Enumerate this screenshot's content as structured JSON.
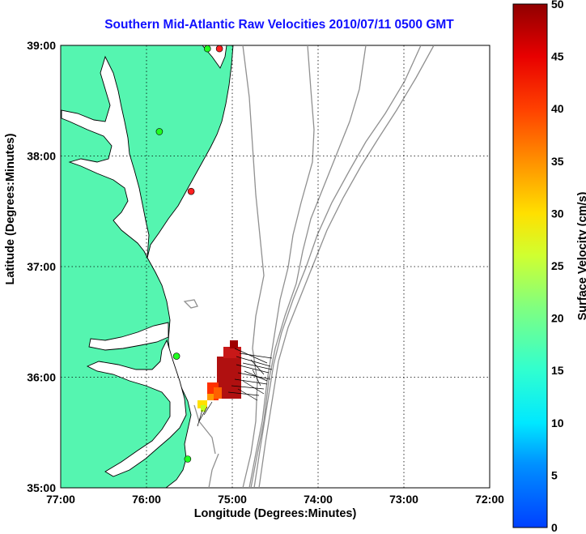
{
  "title": "Southern Mid-Atlantic Raw Velocities 2010/07/11 0500 GMT",
  "map": {
    "xlabel": "Longitude (Degrees:Minutes)",
    "ylabel": "Latitude (Degrees:Minutes)",
    "x_ticks": [
      "77:00",
      "76:00",
      "75:00",
      "74:00",
      "73:00",
      "72:00"
    ],
    "y_ticks": [
      "39:00",
      "38:00",
      "37:00",
      "36:00",
      "35:00"
    ],
    "lon_range": [
      -77,
      -72
    ],
    "lat_range": [
      35,
      39
    ],
    "grid": true,
    "land_color": "#55f5b0",
    "coast_color": "#000000",
    "bathymetry_color": "#909090",
    "stations": [
      {
        "lon": -75.15,
        "lat": 38.97,
        "color": "#ff2020"
      },
      {
        "lon": -75.29,
        "lat": 38.97,
        "color": "#20ff20"
      },
      {
        "lon": -75.85,
        "lat": 38.22,
        "color": "#20ff20"
      },
      {
        "lon": -75.48,
        "lat": 37.68,
        "color": "#ff2020"
      },
      {
        "lon": -75.65,
        "lat": 36.19,
        "color": "#20ff20"
      },
      {
        "lon": -75.52,
        "lat": 35.26,
        "color": "#20ff20"
      }
    ]
  },
  "colorbar": {
    "label": "Surface Velocity (cm/s)",
    "ticks": [
      "0",
      "5",
      "10",
      "15",
      "20",
      "25",
      "30",
      "35",
      "40",
      "45",
      "50"
    ],
    "range": [
      0,
      50
    ],
    "colormap": "jet"
  }
}
